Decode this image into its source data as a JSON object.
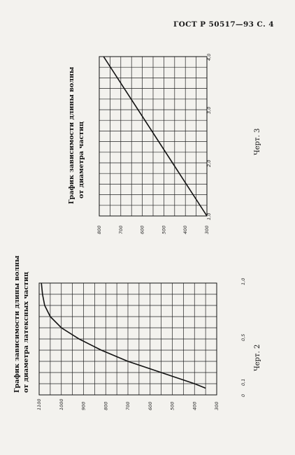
{
  "header": {
    "text": "ГОСТ Р 50517—93 С. 4"
  },
  "charts": [
    {
      "id": "chart-3",
      "title_line1": "График зависимости длины волны",
      "title_line2": "от диаметра частиц",
      "label": "Черт. 3",
      "x_tick_labels": [
        "1,0",
        "2,0",
        "3,0",
        "4,0"
      ],
      "y_tick_labels": [
        "800",
        "700",
        "600",
        "500",
        "400",
        "300"
      ]
    },
    {
      "id": "chart-2",
      "title_line1": "График зависимости длины волны",
      "title_line2": "от диаметра латексных частиц",
      "label": "Черт. 2",
      "x_tick_labels": [
        "0",
        "0,1",
        "0,5",
        "1,0"
      ],
      "y_tick_labels": [
        "1100",
        "1000",
        "900",
        "800",
        "700",
        "600",
        "500",
        "400",
        "300"
      ]
    }
  ],
  "chart_data": [
    {
      "type": "line",
      "title": "График зависимости длины волны от диаметра частиц",
      "xlabel": "",
      "ylabel": "",
      "xlim": [
        1.0,
        4.0
      ],
      "ylim": [
        300,
        800
      ],
      "grid": true,
      "series": [
        {
          "x": [
            1.0,
            4.0
          ],
          "y": [
            300,
            780
          ]
        }
      ]
    },
    {
      "type": "line",
      "title": "График зависимости длины волны от диаметра латексных частиц",
      "xlabel": "",
      "ylabel": "",
      "xlim": [
        0,
        1.0
      ],
      "ylim": [
        300,
        1100
      ],
      "grid": true,
      "series": [
        {
          "x": [
            0.06,
            0.1,
            0.15,
            0.2,
            0.3,
            0.4,
            0.5,
            0.6,
            0.7,
            0.8,
            0.9,
            1.0
          ],
          "y": [
            350,
            400,
            475,
            550,
            700,
            820,
            920,
            1000,
            1050,
            1075,
            1085,
            1090
          ]
        }
      ]
    }
  ]
}
